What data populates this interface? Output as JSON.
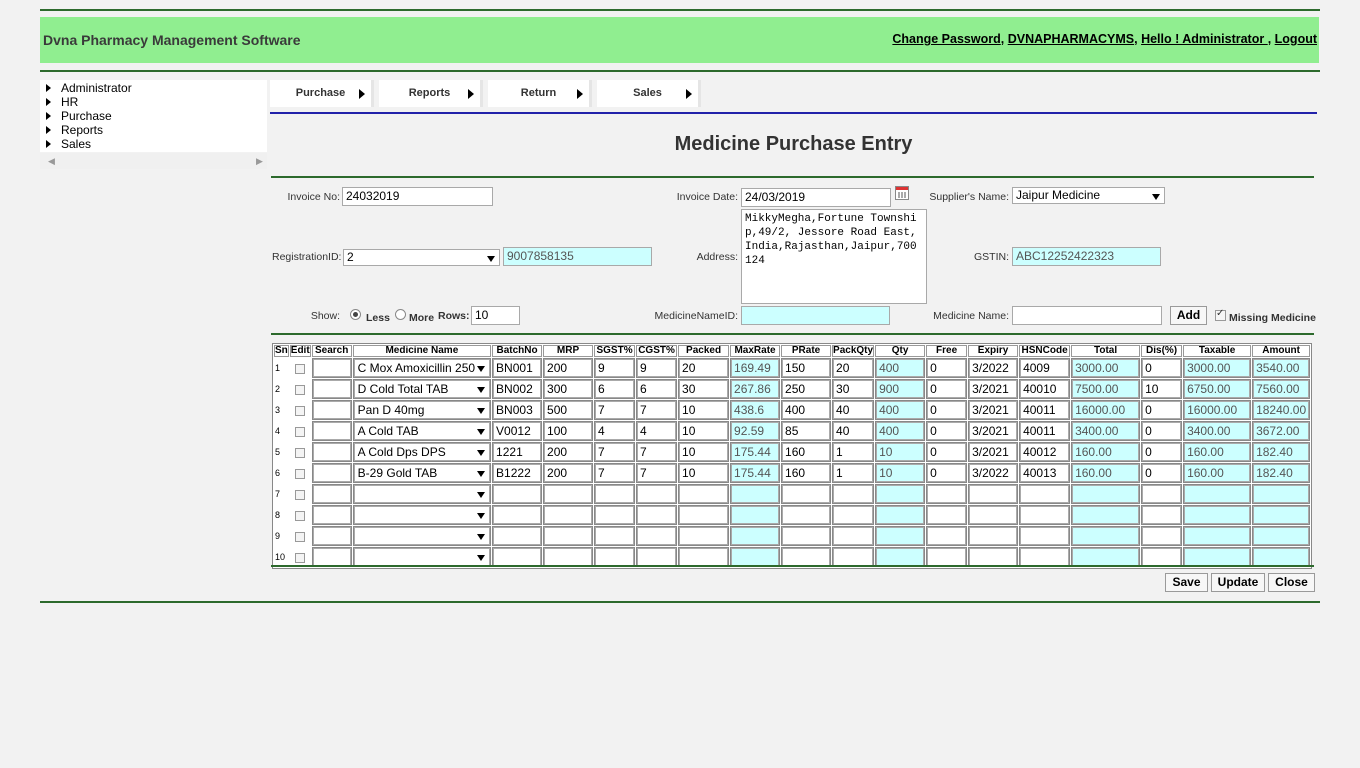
{
  "header": {
    "brand": "Dvna Pharmacy Management Software",
    "links": [
      "Change Password",
      "DVNAPHARMACYMS",
      "Hello ! Administrator ",
      "Logout"
    ],
    "separators": [
      ", ",
      ", ",
      ", "
    ]
  },
  "sidebar": {
    "items": [
      {
        "label": "Administrator"
      },
      {
        "label": "HR"
      },
      {
        "label": "Purchase"
      },
      {
        "label": "Reports"
      },
      {
        "label": "Sales"
      }
    ]
  },
  "menu": {
    "items": [
      {
        "label": "Purchase"
      },
      {
        "label": "Reports"
      },
      {
        "label": "Return"
      },
      {
        "label": "Sales"
      }
    ]
  },
  "page": {
    "title": "Medicine Purchase Entry"
  },
  "form": {
    "invoice_no_label": "Invoice No:",
    "invoice_no": "24032019",
    "invoice_date_label": "Invoice Date:",
    "invoice_date": "24/03/2019",
    "supplier_label": "Supplier's Name:",
    "supplier": "Jaipur Medicine",
    "registration_label": "RegistrationID:",
    "registration": "2",
    "phone": "9007858135",
    "address_label": "Address:",
    "address": "MikkyMegha,Fortune Township,49/2, Jessore Road East,India,Rajasthan,Jaipur,700124",
    "gstin_label": "GSTIN:",
    "gstin": "ABC12252422323",
    "show_label": "Show:",
    "less_label": "Less",
    "more_label": "More",
    "rows_label": "Rows:",
    "rows": "10",
    "medicine_name_id_label": "MedicineNameID:",
    "medicine_name_id": "",
    "medicine_name_label": "Medicine Name:",
    "medicine_name": "",
    "add_label": "Add",
    "missing_label": "Missing Medicine",
    "missing_checked": true,
    "show_mode": "Less"
  },
  "table": {
    "headers": [
      "Sn",
      "Edit",
      "Search",
      "Medicine Name",
      "BatchNo",
      "MRP",
      "SGST%",
      "CGST%",
      "Packed",
      "MaxRate",
      "PRate",
      "PackQty",
      "Qty",
      "Free",
      "Expiry",
      "HSNCode",
      "Total",
      "Dis(%)",
      "Taxable",
      "Amount"
    ],
    "rows": [
      {
        "sn": "1",
        "name": "C Mox Amoxicillin 250",
        "batch": "BN001",
        "mrp": "200",
        "sgst": "9",
        "cgst": "9",
        "packed": "20",
        "maxrate": "169.49",
        "prate": "150",
        "packqty": "20",
        "qty": "400",
        "free": "0",
        "expiry": "3/2022",
        "hsn": "4009",
        "total": "3000.00",
        "dis": "0",
        "taxable": "3000.00",
        "amount": "3540.00"
      },
      {
        "sn": "2",
        "name": "D Cold Total TAB",
        "batch": "BN002",
        "mrp": "300",
        "sgst": "6",
        "cgst": "6",
        "packed": "30",
        "maxrate": "267.86",
        "prate": "250",
        "packqty": "30",
        "qty": "900",
        "free": "0",
        "expiry": "3/2021",
        "hsn": "40010",
        "total": "7500.00",
        "dis": "10",
        "taxable": "6750.00",
        "amount": "7560.00"
      },
      {
        "sn": "3",
        "name": "Pan D 40mg",
        "batch": "BN003",
        "mrp": "500",
        "sgst": "7",
        "cgst": "7",
        "packed": "10",
        "maxrate": "438.6",
        "prate": "400",
        "packqty": "40",
        "qty": "400",
        "free": "0",
        "expiry": "3/2021",
        "hsn": "40011",
        "total": "16000.00",
        "dis": "0",
        "taxable": "16000.00",
        "amount": "18240.00"
      },
      {
        "sn": "4",
        "name": "A Cold TAB",
        "batch": "V0012",
        "mrp": "100",
        "sgst": "4",
        "cgst": "4",
        "packed": "10",
        "maxrate": "92.59",
        "prate": "85",
        "packqty": "40",
        "qty": "400",
        "free": "0",
        "expiry": "3/2021",
        "hsn": "40011",
        "total": "3400.00",
        "dis": "0",
        "taxable": "3400.00",
        "amount": "3672.00"
      },
      {
        "sn": "5",
        "name": "A Cold Dps DPS",
        "batch": "1221",
        "mrp": "200",
        "sgst": "7",
        "cgst": "7",
        "packed": "10",
        "maxrate": "175.44",
        "prate": "160",
        "packqty": "1",
        "qty": "10",
        "free": "0",
        "expiry": "3/2021",
        "hsn": "40012",
        "total": "160.00",
        "dis": "0",
        "taxable": "160.00",
        "amount": "182.40"
      },
      {
        "sn": "6",
        "name": "B-29 Gold TAB",
        "batch": "B1222",
        "mrp": "200",
        "sgst": "7",
        "cgst": "7",
        "packed": "10",
        "maxrate": "175.44",
        "prate": "160",
        "packqty": "1",
        "qty": "10",
        "free": "0",
        "expiry": "3/2022",
        "hsn": "40013",
        "total": "160.00",
        "dis": "0",
        "taxable": "160.00",
        "amount": "182.40"
      },
      {
        "sn": "7",
        "name": "",
        "batch": "",
        "mrp": "",
        "sgst": "",
        "cgst": "",
        "packed": "",
        "maxrate": "",
        "prate": "",
        "packqty": "",
        "qty": "",
        "free": "",
        "expiry": "",
        "hsn": "",
        "total": "",
        "dis": "",
        "taxable": "",
        "amount": ""
      },
      {
        "sn": "8",
        "name": "",
        "batch": "",
        "mrp": "",
        "sgst": "",
        "cgst": "",
        "packed": "",
        "maxrate": "",
        "prate": "",
        "packqty": "",
        "qty": "",
        "free": "",
        "expiry": "",
        "hsn": "",
        "total": "",
        "dis": "",
        "taxable": "",
        "amount": ""
      },
      {
        "sn": "9",
        "name": "",
        "batch": "",
        "mrp": "",
        "sgst": "",
        "cgst": "",
        "packed": "",
        "maxrate": "",
        "prate": "",
        "packqty": "",
        "qty": "",
        "free": "",
        "expiry": "",
        "hsn": "",
        "total": "",
        "dis": "",
        "taxable": "",
        "amount": ""
      },
      {
        "sn": "10",
        "name": "",
        "batch": "",
        "mrp": "",
        "sgst": "",
        "cgst": "",
        "packed": "",
        "maxrate": "",
        "prate": "",
        "packqty": "",
        "qty": "",
        "free": "",
        "expiry": "",
        "hsn": "",
        "total": "",
        "dis": "",
        "taxable": "",
        "amount": ""
      }
    ]
  },
  "actions": {
    "save": "Save",
    "update": "Update",
    "close": "Close"
  },
  "colors": {
    "header_bg": "#90ee90",
    "rule_green": "#2d6a2d",
    "rule_blue": "#2222aa",
    "readonly_bg": "#ccffff"
  }
}
